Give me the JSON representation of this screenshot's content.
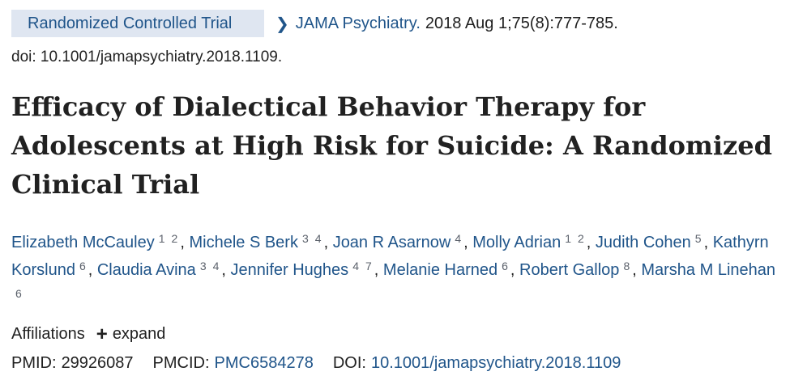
{
  "article_type": "Randomized Controlled Trial",
  "journal": {
    "name": "JAMA Psychiatry.",
    "citation": "2018 Aug 1;75(8):777-785."
  },
  "doi_line": "doi: 10.1001/jamapsychiatry.2018.1109.",
  "title": "Efficacy of Dialectical Behavior Therapy for Adolescents at High Risk for Suicide: A Randomized Clinical Trial",
  "authors": [
    {
      "name": "Elizabeth McCauley",
      "affs": [
        "1",
        "2"
      ]
    },
    {
      "name": "Michele S Berk",
      "affs": [
        "3",
        "4"
      ]
    },
    {
      "name": "Joan R Asarnow",
      "affs": [
        "4"
      ]
    },
    {
      "name": "Molly Adrian",
      "affs": [
        "1",
        "2"
      ]
    },
    {
      "name": "Judith Cohen",
      "affs": [
        "5"
      ]
    },
    {
      "name": "Kathyrn Korslund",
      "affs": [
        "6"
      ]
    },
    {
      "name": "Claudia Avina",
      "affs": [
        "3",
        "4"
      ]
    },
    {
      "name": "Jennifer Hughes",
      "affs": [
        "4",
        "7"
      ]
    },
    {
      "name": "Melanie Harned",
      "affs": [
        "6"
      ]
    },
    {
      "name": "Robert Gallop",
      "affs": [
        "8"
      ]
    },
    {
      "name": "Marsha M Linehan",
      "affs": [
        "6"
      ]
    }
  ],
  "affiliations": {
    "label": "Affiliations",
    "expand_label": "expand",
    "expand_icon": "plus-icon"
  },
  "identifiers": {
    "pmid_label": "PMID:",
    "pmid": "29926087",
    "pmcid_label": "PMCID:",
    "pmcid": "PMC6584278",
    "doi_label": "DOI:",
    "doi": "10.1001/jamapsychiatry.2018.1109"
  },
  "colors": {
    "link": "#20558a",
    "badge_bg": "#dfe6f1",
    "text": "#212121"
  }
}
